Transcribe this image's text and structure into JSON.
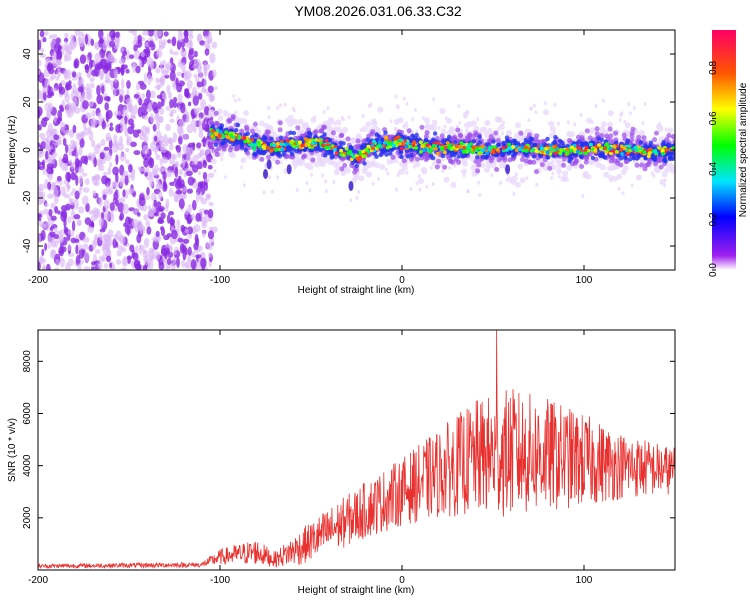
{
  "title": "YM08.2026.031.06.33.C32",
  "chart_data": [
    {
      "type": "heatmap",
      "name": "spectrogram",
      "xlabel": "Height of straight line (km)",
      "ylabel": "Frequency (Hz)",
      "xlim": [
        -200,
        150
      ],
      "ylim": [
        -50,
        50
      ],
      "xticks": [
        -200,
        -100,
        0,
        100
      ],
      "yticks": [
        -40,
        -20,
        0,
        20,
        40
      ],
      "noise_region_x": [
        -200,
        -103
      ],
      "signal_band_center_hz": [
        {
          "x": -105,
          "y": 7
        },
        {
          "x": -90,
          "y": 5
        },
        {
          "x": -75,
          "y": 1
        },
        {
          "x": -62,
          "y": 2
        },
        {
          "x": -45,
          "y": 3
        },
        {
          "x": -35,
          "y": 0
        },
        {
          "x": -25,
          "y": -3
        },
        {
          "x": -15,
          "y": 2
        },
        {
          "x": -5,
          "y": 3
        },
        {
          "x": 5,
          "y": 2
        },
        {
          "x": 20,
          "y": 1
        },
        {
          "x": 35,
          "y": 1
        },
        {
          "x": 50,
          "y": 0
        },
        {
          "x": 65,
          "y": 1
        },
        {
          "x": 80,
          "y": 0
        },
        {
          "x": 95,
          "y": 0
        },
        {
          "x": 110,
          "y": 1
        },
        {
          "x": 125,
          "y": 0
        },
        {
          "x": 140,
          "y": -1
        },
        {
          "x": 150,
          "y": 0
        }
      ],
      "colorbar": {
        "label": "Normalized spectral amplitude",
        "range": [
          0,
          0.95
        ],
        "ticks": [
          0.0,
          0.2,
          0.4,
          0.6,
          0.8
        ],
        "tick_labels": [
          "0.0",
          "0.2",
          "0.4",
          "0.6",
          "0.8"
        ]
      }
    },
    {
      "type": "line",
      "name": "snr",
      "xlabel": "Height of straight line (km)",
      "ylabel": "SNR (10 * v/v)",
      "xlim": [
        -200,
        150
      ],
      "ylim": [
        0,
        9200
      ],
      "xticks": [
        -200,
        -100,
        0,
        100
      ],
      "yticks": [
        2000,
        4000,
        6000,
        8000
      ],
      "color": "#e8312f",
      "envelope": [
        {
          "x": -200,
          "mean": 150,
          "spread": 80
        },
        {
          "x": -110,
          "mean": 200,
          "spread": 100
        },
        {
          "x": -100,
          "mean": 500,
          "spread": 300
        },
        {
          "x": -80,
          "mean": 700,
          "spread": 500
        },
        {
          "x": -70,
          "mean": 400,
          "spread": 300
        },
        {
          "x": -55,
          "mean": 900,
          "spread": 700
        },
        {
          "x": -40,
          "mean": 1500,
          "spread": 900
        },
        {
          "x": -20,
          "mean": 2300,
          "spread": 1100
        },
        {
          "x": 0,
          "mean": 3000,
          "spread": 1300
        },
        {
          "x": 20,
          "mean": 3700,
          "spread": 1700
        },
        {
          "x": 40,
          "mean": 4300,
          "spread": 2200
        },
        {
          "x": 60,
          "mean": 4500,
          "spread": 2500
        },
        {
          "x": 80,
          "mean": 4400,
          "spread": 2200
        },
        {
          "x": 100,
          "mean": 4200,
          "spread": 1800
        },
        {
          "x": 120,
          "mean": 4000,
          "spread": 1300
        },
        {
          "x": 150,
          "mean": 3800,
          "spread": 900
        }
      ],
      "peak": {
        "x": 52,
        "y": 9200
      }
    }
  ]
}
